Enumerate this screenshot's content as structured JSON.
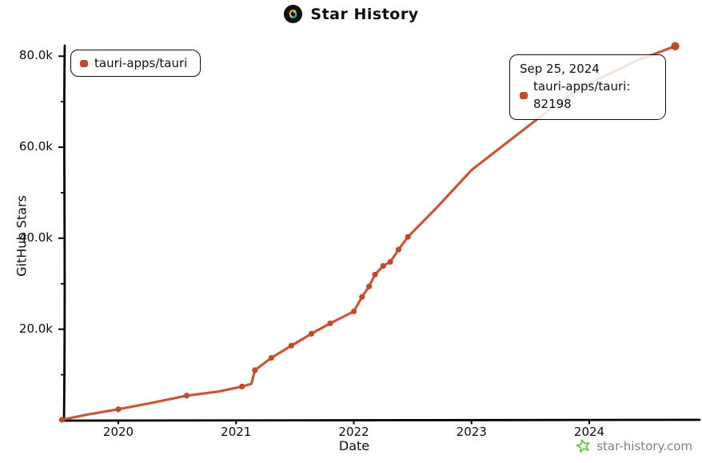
{
  "header": {
    "title": "Star History"
  },
  "legend": {
    "label": "tauri-apps/tauri",
    "marker_color": "#bf4b2b"
  },
  "tooltip": {
    "date": "Sep 25, 2024",
    "text": "tauri-apps/tauri: 82198",
    "series": "tauri-apps/tauri",
    "value": 82198,
    "marker_color": "#bf4b2b"
  },
  "watermark": {
    "text": "star-history.com",
    "icon_color": "#5cc42e",
    "text_color": "#818181"
  },
  "chart_data": {
    "type": "line",
    "title": "Star History",
    "xlabel": "Date",
    "ylabel": "GitHub Stars",
    "legend_position": "top-left",
    "grid": false,
    "line_color": "#c4593a",
    "marker_color": "#bf4b2b",
    "axis_color": "#000000",
    "xlim": [
      2019.45,
      2024.95
    ],
    "ylim": [
      0,
      84000
    ],
    "x_ticks": [
      {
        "label": "2020",
        "value": 2020
      },
      {
        "label": "2021",
        "value": 2021
      },
      {
        "label": "2022",
        "value": 2022
      },
      {
        "label": "2023",
        "value": 2023
      },
      {
        "label": "2024",
        "value": 2024
      }
    ],
    "y_ticks": [
      {
        "label": "20.0k",
        "value": 20000
      },
      {
        "label": "40.0k",
        "value": 40000
      },
      {
        "label": "60.0k",
        "value": 60000
      },
      {
        "label": "80.0k",
        "value": 80000
      }
    ],
    "y_minor_ticks": [
      10000,
      30000,
      50000,
      70000
    ],
    "series": [
      {
        "name": "tauri-apps/tauri",
        "points_format": "[decimal_year, stars, marker(0=no,1=dot,2=big-dot)]",
        "points": [
          [
            2019.52,
            100,
            1
          ],
          [
            2019.75,
            1300,
            0
          ],
          [
            2020.0,
            2400,
            1
          ],
          [
            2020.3,
            3900,
            0
          ],
          [
            2020.58,
            5400,
            1
          ],
          [
            2020.85,
            6300,
            0
          ],
          [
            2021.05,
            7400,
            1
          ],
          [
            2021.13,
            8000,
            0
          ],
          [
            2021.16,
            11000,
            1
          ],
          [
            2021.3,
            13700,
            1
          ],
          [
            2021.47,
            16400,
            1
          ],
          [
            2021.64,
            19000,
            1
          ],
          [
            2021.8,
            21300,
            1
          ],
          [
            2022.0,
            23900,
            1
          ],
          [
            2022.07,
            27100,
            1
          ],
          [
            2022.13,
            29400,
            1
          ],
          [
            2022.18,
            32000,
            1
          ],
          [
            2022.25,
            33900,
            1
          ],
          [
            2022.31,
            34800,
            1
          ],
          [
            2022.38,
            37500,
            1
          ],
          [
            2022.46,
            40300,
            1
          ],
          [
            2022.7,
            46600,
            0
          ],
          [
            2023.0,
            55000,
            0
          ],
          [
            2023.4,
            63000,
            0
          ],
          [
            2023.75,
            70000,
            0
          ],
          [
            2024.0,
            74000,
            0
          ],
          [
            2024.4,
            79000,
            0
          ],
          [
            2024.73,
            82198,
            2
          ]
        ]
      }
    ],
    "final_point": {
      "date": "Sep 25, 2024",
      "stars": 82198
    }
  }
}
